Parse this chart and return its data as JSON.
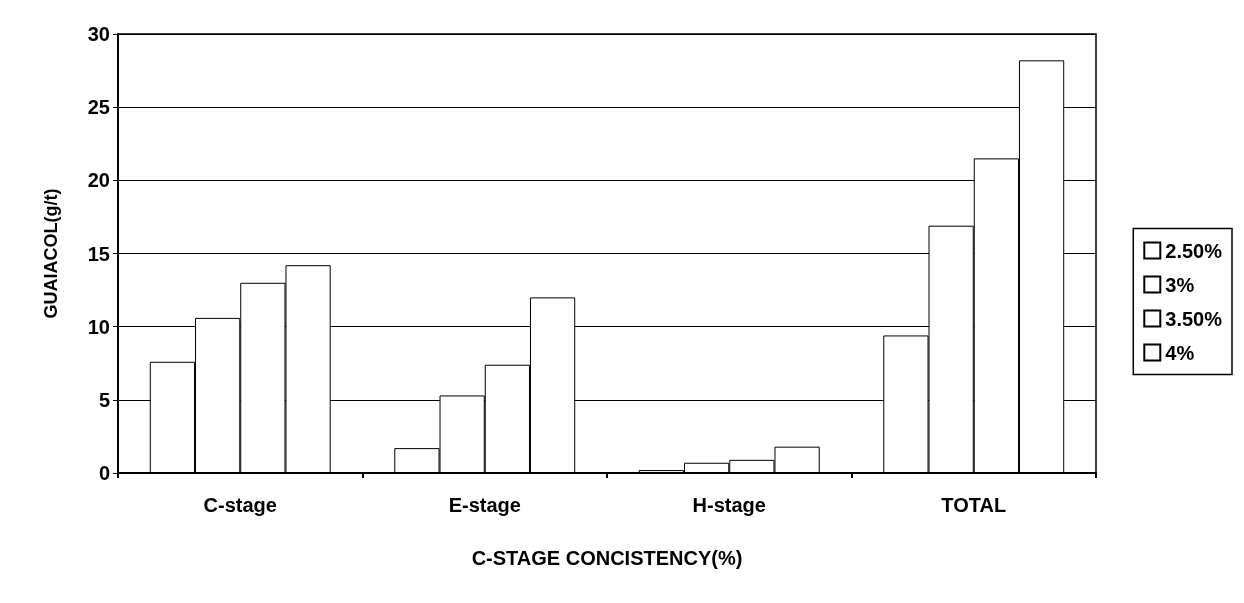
{
  "chart_data": {
    "type": "bar",
    "xlabel": "C-STAGE CONCISTENCY(%)",
    "ylabel": "GUAIACOL(g/t)",
    "categories": [
      "C-stage",
      "E-stage",
      "H-stage",
      "TOTAL"
    ],
    "series": [
      {
        "name": "2.50%",
        "color": "#ffffff",
        "values": [
          7.6,
          1.7,
          0.2,
          9.4
        ]
      },
      {
        "name": "3%",
        "color": "#ffffff",
        "values": [
          10.6,
          5.3,
          0.7,
          16.9
        ]
      },
      {
        "name": "3.50%",
        "color": "#ffffff",
        "values": [
          13.0,
          7.4,
          0.9,
          21.5
        ]
      },
      {
        "name": "4%",
        "color": "#ffffff",
        "values": [
          14.2,
          12.0,
          1.8,
          28.2
        ]
      }
    ],
    "ylim": [
      0,
      30
    ],
    "yticks": [
      0,
      5,
      10,
      15,
      20,
      25,
      30
    ],
    "grid": "y",
    "legend": "right"
  }
}
